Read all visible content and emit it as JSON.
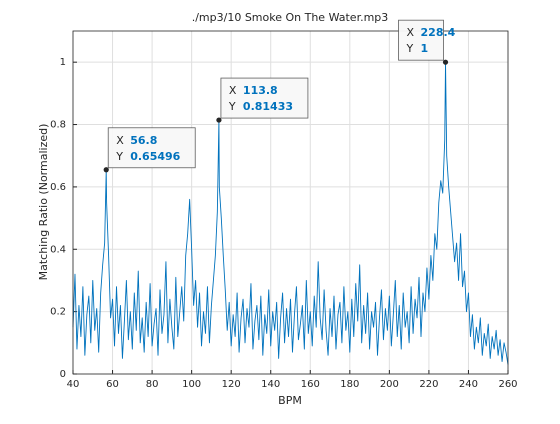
{
  "chart_data": {
    "type": "line",
    "title": "./mp3/10 Smoke On The Water.mp3",
    "x_label": "BPM",
    "y_label": "Matching Ratio (Normalized)",
    "color": "#0072bd",
    "grid": true,
    "xlim": [
      40,
      260
    ],
    "ylim": [
      0,
      1.1
    ],
    "xticks": [
      40,
      60,
      80,
      100,
      120,
      140,
      160,
      180,
      200,
      220,
      240,
      260
    ],
    "yticks": [
      0,
      0.2,
      0.4,
      0.6,
      0.8,
      1
    ],
    "x": [
      40,
      41,
      42,
      43,
      44,
      45,
      46,
      47,
      48,
      49,
      50,
      51,
      52,
      53,
      54,
      55,
      56,
      56.8,
      57,
      58,
      59,
      60,
      61,
      62,
      63,
      64,
      65,
      66,
      67,
      68,
      69,
      70,
      71,
      72,
      73,
      74,
      75,
      76,
      77,
      78,
      79,
      80,
      81,
      82,
      83,
      84,
      85,
      86,
      87,
      88,
      89,
      90,
      91,
      92,
      93,
      94,
      95,
      96,
      97,
      98,
      99,
      100,
      101,
      102,
      103,
      104,
      105,
      106,
      107,
      108,
      109,
      110,
      111,
      112,
      113,
      113.8,
      114,
      115,
      116,
      117,
      118,
      119,
      120,
      121,
      122,
      123,
      124,
      125,
      126,
      127,
      128,
      129,
      130,
      131,
      132,
      133,
      134,
      135,
      136,
      137,
      138,
      139,
      140,
      141,
      142,
      143,
      144,
      145,
      146,
      147,
      148,
      149,
      150,
      151,
      152,
      153,
      154,
      155,
      156,
      157,
      158,
      159,
      160,
      161,
      162,
      163,
      164,
      165,
      166,
      167,
      168,
      169,
      170,
      171,
      172,
      173,
      174,
      175,
      176,
      177,
      178,
      179,
      180,
      181,
      182,
      183,
      184,
      185,
      186,
      187,
      188,
      189,
      190,
      191,
      192,
      193,
      194,
      195,
      196,
      197,
      198,
      199,
      200,
      201,
      202,
      203,
      204,
      205,
      206,
      207,
      208,
      209,
      210,
      211,
      212,
      213,
      214,
      215,
      216,
      217,
      218,
      219,
      220,
      221,
      222,
      223,
      224,
      225,
      226,
      227,
      228,
      228.4,
      229,
      230,
      231,
      232,
      233,
      234,
      235,
      236,
      237,
      238,
      239,
      240,
      241,
      242,
      243,
      244,
      245,
      246,
      247,
      248,
      249,
      250,
      251,
      252,
      253,
      254,
      255,
      256,
      257,
      258,
      259,
      260
    ],
    "values": [
      0.15,
      0.32,
      0.08,
      0.22,
      0.12,
      0.28,
      0.06,
      0.19,
      0.25,
      0.1,
      0.3,
      0.14,
      0.21,
      0.07,
      0.26,
      0.35,
      0.42,
      0.65496,
      0.55,
      0.38,
      0.18,
      0.24,
      0.09,
      0.28,
      0.13,
      0.22,
      0.05,
      0.17,
      0.3,
      0.11,
      0.2,
      0.08,
      0.26,
      0.14,
      0.33,
      0.1,
      0.18,
      0.07,
      0.23,
      0.12,
      0.29,
      0.09,
      0.16,
      0.21,
      0.06,
      0.27,
      0.13,
      0.19,
      0.36,
      0.1,
      0.24,
      0.15,
      0.08,
      0.31,
      0.12,
      0.2,
      0.28,
      0.17,
      0.38,
      0.45,
      0.56,
      0.4,
      0.22,
      0.3,
      0.15,
      0.26,
      0.09,
      0.2,
      0.13,
      0.28,
      0.1,
      0.22,
      0.3,
      0.38,
      0.52,
      0.81433,
      0.6,
      0.5,
      0.38,
      0.27,
      0.14,
      0.23,
      0.09,
      0.19,
      0.12,
      0.26,
      0.07,
      0.18,
      0.24,
      0.1,
      0.21,
      0.15,
      0.29,
      0.08,
      0.17,
      0.22,
      0.11,
      0.25,
      0.06,
      0.19,
      0.13,
      0.27,
      0.09,
      0.2,
      0.14,
      0.23,
      0.05,
      0.18,
      0.26,
      0.1,
      0.21,
      0.12,
      0.24,
      0.07,
      0.19,
      0.28,
      0.11,
      0.16,
      0.22,
      0.08,
      0.3,
      0.13,
      0.2,
      0.09,
      0.25,
      0.15,
      0.36,
      0.18,
      0.11,
      0.27,
      0.14,
      0.06,
      0.21,
      0.12,
      0.25,
      0.08,
      0.19,
      0.23,
      0.1,
      0.28,
      0.14,
      0.2,
      0.07,
      0.24,
      0.12,
      0.29,
      0.17,
      0.35,
      0.1,
      0.22,
      0.13,
      0.26,
      0.08,
      0.2,
      0.15,
      0.23,
      0.06,
      0.18,
      0.27,
      0.11,
      0.21,
      0.14,
      0.25,
      0.09,
      0.19,
      0.3,
      0.12,
      0.22,
      0.08,
      0.26,
      0.15,
      0.2,
      0.1,
      0.28,
      0.13,
      0.24,
      0.18,
      0.31,
      0.12,
      0.26,
      0.2,
      0.34,
      0.24,
      0.38,
      0.3,
      0.45,
      0.4,
      0.55,
      0.62,
      0.58,
      0.75,
      1,
      0.7,
      0.6,
      0.52,
      0.44,
      0.36,
      0.42,
      0.3,
      0.45,
      0.28,
      0.33,
      0.2,
      0.26,
      0.12,
      0.19,
      0.08,
      0.15,
      0.1,
      0.18,
      0.06,
      0.13,
      0.09,
      0.16,
      0.05,
      0.12,
      0.08,
      0.14,
      0.06,
      0.11,
      0.04,
      0.1,
      0.07,
      0.03
    ],
    "datatips": [
      {
        "x_label": "X",
        "x": 56.8,
        "y_label": "Y",
        "y": 0.65496
      },
      {
        "x_label": "X",
        "x": 113.8,
        "y_label": "Y",
        "y": 0.81433
      },
      {
        "x_label": "X",
        "x": 228.4,
        "y_label": "Y",
        "y": 1
      }
    ]
  }
}
